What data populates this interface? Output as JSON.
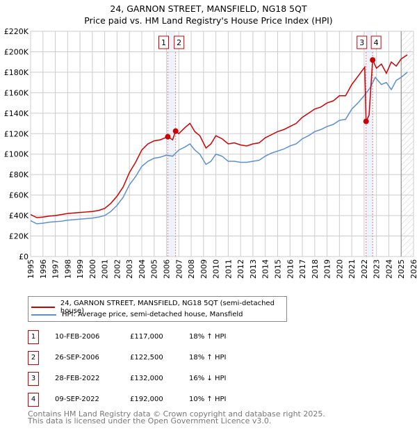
{
  "chart_data": {
    "type": "line",
    "title": "24, GARNON STREET, MANSFIELD, NG18 5QT",
    "subtitle": "Price paid vs. HM Land Registry's House Price Index (HPI)",
    "xlim": [
      1995,
      2026
    ],
    "ylim": [
      0,
      220000
    ],
    "grid": true,
    "x_ticks": [
      "1995",
      "1996",
      "1997",
      "1998",
      "1999",
      "2000",
      "2001",
      "2002",
      "2003",
      "2004",
      "2005",
      "2006",
      "2007",
      "2008",
      "2009",
      "2010",
      "2011",
      "2012",
      "2013",
      "2014",
      "2015",
      "2016",
      "2017",
      "2018",
      "2019",
      "2020",
      "2021",
      "2022",
      "2023",
      "2024",
      "2025",
      "2026"
    ],
    "y_ticks": [
      "£0",
      "£20K",
      "£40K",
      "£60K",
      "£80K",
      "£100K",
      "£120K",
      "£140K",
      "£160K",
      "£180K",
      "£200K",
      "£220K"
    ],
    "series": [
      {
        "name": "24, GARNON STREET, MANSFIELD, NG18 5QT (semi-detached house)",
        "color": "#cc0000",
        "x": [
          1995,
          1995.5,
          1996,
          1996.5,
          1997,
          1997.5,
          1998,
          1998.5,
          1999,
          1999.5,
          2000,
          2000.5,
          2001,
          2001.5,
          2002,
          2002.5,
          2003,
          2003.5,
          2004,
          2004.5,
          2005,
          2005.5,
          2006.11,
          2006.5,
          2006.74,
          2007,
          2007.5,
          2007.9,
          2008.3,
          2008.7,
          2009.2,
          2009.6,
          2010,
          2010.5,
          2011,
          2011.5,
          2012,
          2012.5,
          2013,
          2013.5,
          2014,
          2014.5,
          2015,
          2015.5,
          2016,
          2016.5,
          2017,
          2017.5,
          2018,
          2018.5,
          2019,
          2019.5,
          2020,
          2020.5,
          2021,
          2021.5,
          2022.05,
          2022.16,
          2022.4,
          2022.69,
          2023,
          2023.4,
          2023.8,
          2024.2,
          2024.6,
          2025,
          2025.5
        ],
        "y": [
          41000,
          38000,
          38500,
          39500,
          40000,
          41000,
          42000,
          42500,
          43000,
          43500,
          44000,
          45000,
          47000,
          52000,
          59000,
          68000,
          82000,
          92000,
          104000,
          110000,
          113000,
          114000,
          117000,
          114000,
          122500,
          120000,
          126000,
          130000,
          122000,
          118000,
          106000,
          110000,
          118000,
          115000,
          110000,
          111000,
          109000,
          108000,
          110000,
          111000,
          116000,
          119000,
          122000,
          124000,
          127000,
          130000,
          136000,
          140000,
          144000,
          146000,
          150000,
          152000,
          157000,
          157000,
          168000,
          176000,
          185000,
          132000,
          138000,
          192000,
          184000,
          188000,
          179000,
          190000,
          186000,
          193000,
          197000
        ]
      },
      {
        "name": "HPI: Average price, semi-detached house, Mansfield",
        "color": "#5b8fd0",
        "x": [
          1995,
          1995.5,
          1996,
          1996.5,
          1997,
          1997.5,
          1998,
          1998.5,
          1999,
          1999.5,
          2000,
          2000.5,
          2001,
          2001.5,
          2002,
          2002.5,
          2003,
          2003.5,
          2004,
          2004.5,
          2005,
          2005.5,
          2006,
          2006.5,
          2007,
          2007.5,
          2007.9,
          2008.3,
          2008.7,
          2009.2,
          2009.6,
          2010,
          2010.5,
          2011,
          2011.5,
          2012,
          2012.5,
          2013,
          2013.5,
          2014,
          2014.5,
          2015,
          2015.5,
          2016,
          2016.5,
          2017,
          2017.5,
          2018,
          2018.5,
          2019,
          2019.5,
          2020,
          2020.5,
          2021,
          2021.5,
          2022,
          2022.5,
          2022.9,
          2023.4,
          2023.8,
          2024.2,
          2024.6,
          2025,
          2025.5
        ],
        "y": [
          35000,
          32000,
          32500,
          33500,
          34000,
          34500,
          35500,
          36000,
          36500,
          37000,
          37500,
          38500,
          40000,
          44000,
          50000,
          58000,
          70000,
          78000,
          88000,
          93000,
          96000,
          97000,
          99000,
          98000,
          104000,
          107000,
          110000,
          104000,
          100000,
          90000,
          93000,
          100000,
          98000,
          93000,
          93000,
          92000,
          92000,
          93000,
          94000,
          98000,
          101000,
          103000,
          105000,
          108000,
          110000,
          115000,
          118000,
          122000,
          124000,
          127000,
          129000,
          133000,
          134000,
          144000,
          150000,
          157000,
          165000,
          175000,
          168000,
          170000,
          163000,
          172000,
          175000,
          180000
        ]
      }
    ],
    "annotations": [
      {
        "label": "1",
        "x": 2006.11,
        "y": 117000
      },
      {
        "label": "2",
        "x": 2006.74,
        "y": 122500
      },
      {
        "label": "3",
        "x": 2022.16,
        "y": 132000
      },
      {
        "label": "4",
        "x": 2022.69,
        "y": 192000
      }
    ],
    "forecast_from": 2025.0,
    "legend_placement": "below"
  },
  "legend": {
    "red": "24, GARNON STREET, MANSFIELD, NG18 5QT (semi-detached house)",
    "blue": "HPI: Average price, semi-detached house, Mansfield"
  },
  "transactions": [
    {
      "num": "1",
      "date": "10-FEB-2006",
      "price": "£117,000",
      "hpi": "18% ↑ HPI"
    },
    {
      "num": "2",
      "date": "26-SEP-2006",
      "price": "£122,500",
      "hpi": "18% ↑ HPI"
    },
    {
      "num": "3",
      "date": "28-FEB-2022",
      "price": "£132,000",
      "hpi": "16% ↓ HPI"
    },
    {
      "num": "4",
      "date": "09-SEP-2022",
      "price": "£192,000",
      "hpi": "10% ↑ HPI"
    }
  ],
  "footer": {
    "line1": "Contains HM Land Registry data © Crown copyright and database right 2025.",
    "line2": "This data is licensed under the Open Government Licence v3.0."
  }
}
